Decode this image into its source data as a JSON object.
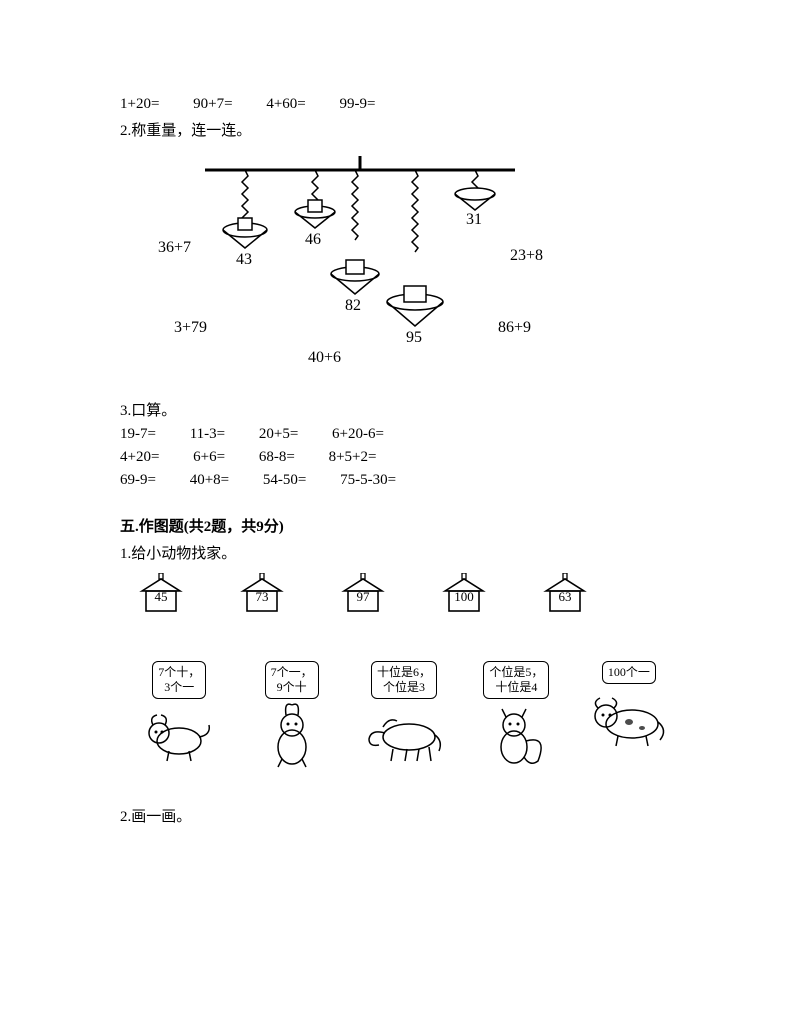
{
  "row1": {
    "a": "1+20=",
    "b": "90+7=",
    "c": "4+60=",
    "d": "99-9="
  },
  "q2_title": "2.称重量，连一连。",
  "balance": {
    "labels": {
      "a": "36+7",
      "b": "43",
      "c": "46",
      "d": "31",
      "e": "23+8",
      "f": "3+79",
      "g": "82",
      "h": "95",
      "i": "86+9",
      "j": "40+6"
    }
  },
  "q3_title": "3.口算。",
  "q3_rows": [
    {
      "a": "19-7=",
      "b": "11-3=",
      "c": "20+5=",
      "d": "6+20-6="
    },
    {
      "a": "4+20=",
      "b": "6+6=",
      "c": "68-8=",
      "d": "8+5+2="
    },
    {
      "a": "69-9=",
      "b": "40+8=",
      "c": "54-50=",
      "d": "75-5-30="
    }
  ],
  "section5_title": "五.作图题(共2题，共9分)",
  "q5_1_title": "1.给小动物找家。",
  "houses": [
    "45",
    "73",
    "97",
    "100",
    "63"
  ],
  "animals": [
    {
      "label": "7个十，\n3个一",
      "kind": "dog"
    },
    {
      "label": "7个一，\n9个十",
      "kind": "rabbit"
    },
    {
      "label": "十位是6，\n个位是3",
      "kind": "horse"
    },
    {
      "label": "个位是5，\n十位是4",
      "kind": "squirrel"
    },
    {
      "label": "100个一",
      "kind": "cow"
    }
  ],
  "q5_2_title": "2.画一画。",
  "colors": {
    "line": "#000000",
    "bg": "#ffffff"
  }
}
